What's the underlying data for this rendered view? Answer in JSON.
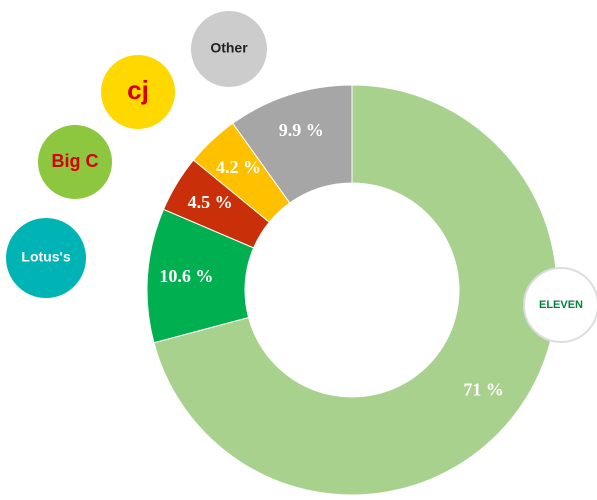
{
  "chart_data": {
    "type": "donut",
    "categories": [
      "ELEVEN",
      "Lotus's",
      "Big C",
      "cj",
      "Other"
    ],
    "values": [
      71,
      10.6,
      4.5,
      4.2,
      9.9
    ],
    "value_labels": [
      "71 %",
      "10.6 %",
      "4.5 %",
      "4.2 %",
      "9.9 %"
    ],
    "colors": [
      "#a9d18e",
      "#00b050",
      "#c9300a",
      "#ffc000",
      "#a6a6a6"
    ]
  }
}
